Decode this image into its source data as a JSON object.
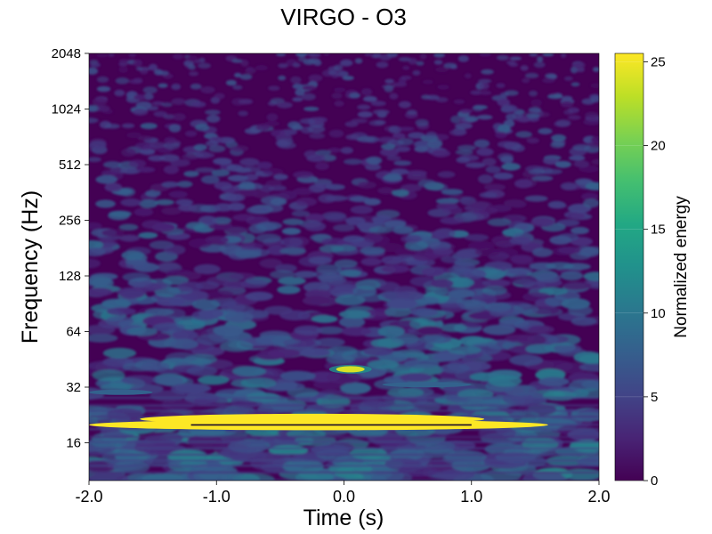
{
  "chart_data": {
    "type": "heatmap",
    "title": "VIRGO - O3",
    "xlabel": "Time (s)",
    "ylabel": "Frequency (Hz)",
    "xlim": [
      -2.0,
      2.0
    ],
    "ylim": [
      10,
      2048
    ],
    "yscale": "log2",
    "x_ticks": [
      "-2.0",
      "-1.0",
      "0.0",
      "1.0",
      "2.0"
    ],
    "y_ticks": [
      "16",
      "32",
      "64",
      "128",
      "256",
      "512",
      "1024",
      "2048"
    ],
    "colorbar": {
      "label": "Normalized energy",
      "range": [
        0,
        25.5
      ],
      "ticks": [
        "0",
        "5",
        "10",
        "15",
        "20",
        "25"
      ],
      "colormap": "viridis"
    },
    "grid": false,
    "features": [
      {
        "kind": "band",
        "t_start": -2.0,
        "t_end": 1.6,
        "freq_hz": 20,
        "energy": 25.5
      },
      {
        "kind": "band",
        "t_start": -1.6,
        "t_end": 1.1,
        "freq_hz": 21.5,
        "energy": 25.5
      },
      {
        "kind": "blob",
        "t_center": 0.05,
        "freq_hz": 40,
        "energy": 24
      },
      {
        "kind": "band",
        "t_start": 0.3,
        "t_end": 1.0,
        "freq_hz": 33,
        "energy": 8
      },
      {
        "kind": "band",
        "t_start": -2.0,
        "t_end": -1.5,
        "freq_hz": 30,
        "energy": 8
      }
    ]
  }
}
